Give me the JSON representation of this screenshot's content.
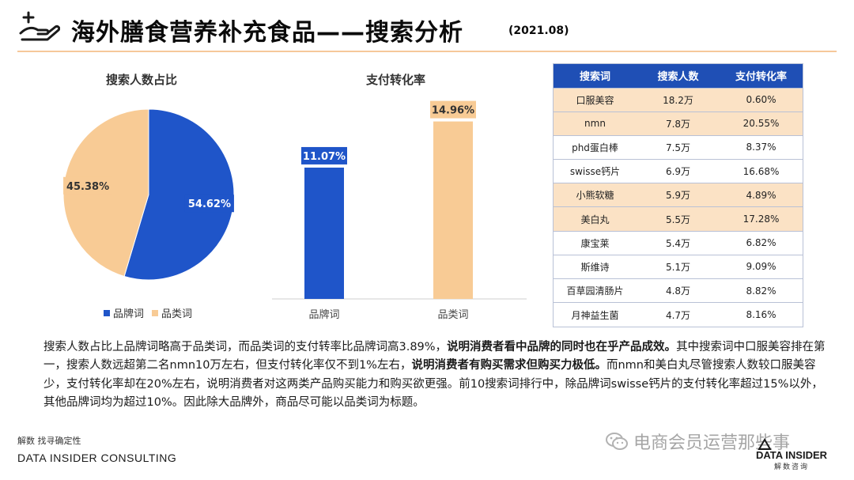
{
  "header": {
    "title": "海外膳食营养补充食品——搜索分析",
    "date": "(2021.08)",
    "logo_icon": "hand-plus-icon"
  },
  "chart_data": [
    {
      "type": "pie",
      "title": "搜索人数占比",
      "slices": [
        {
          "name": "品牌词",
          "value": 54.62,
          "label": "54.62%",
          "color": "#1f55c9"
        },
        {
          "name": "品类词",
          "value": 45.38,
          "label": "45.38%",
          "color": "#f8cb95"
        }
      ],
      "legend": "bottom"
    },
    {
      "type": "bar",
      "title": "支付转化率",
      "categories": [
        "品牌词",
        "品类词"
      ],
      "values": [
        11.07,
        14.96
      ],
      "labels": [
        "11.07%",
        "14.96%"
      ],
      "colors": [
        "#1f55c9",
        "#f8cb95"
      ],
      "ylim": [
        0,
        16
      ]
    }
  ],
  "table": {
    "headers": [
      "搜索词",
      "搜索人数",
      "支付转化率"
    ],
    "rows": [
      {
        "cells": [
          "口服美容",
          "18.2万",
          "0.60%"
        ],
        "highlight": true
      },
      {
        "cells": [
          "nmn",
          "7.8万",
          "20.55%"
        ],
        "highlight": true
      },
      {
        "cells": [
          "phd蛋白棒",
          "7.5万",
          "8.37%"
        ],
        "highlight": false
      },
      {
        "cells": [
          "swisse钙片",
          "6.9万",
          "16.68%"
        ],
        "highlight": false
      },
      {
        "cells": [
          "小熊软糖",
          "5.9万",
          "4.89%"
        ],
        "highlight": true
      },
      {
        "cells": [
          "美白丸",
          "5.5万",
          "17.28%"
        ],
        "highlight": true
      },
      {
        "cells": [
          "康宝莱",
          "5.4万",
          "6.82%"
        ],
        "highlight": false
      },
      {
        "cells": [
          "斯维诗",
          "5.1万",
          "9.09%"
        ],
        "highlight": false
      },
      {
        "cells": [
          "百草园清肠片",
          "4.8万",
          "8.82%"
        ],
        "highlight": false
      },
      {
        "cells": [
          "月神益生菌",
          "4.7万",
          "8.16%"
        ],
        "highlight": false
      }
    ]
  },
  "paragraph": {
    "p1": "搜索人数占比上品牌词略高于品类词，而品类词的支付转率比品牌词高3.89%，",
    "b1": "说明消费者看中品牌的同时也在乎产品成效。",
    "p2": "其中搜索词中口服美容排在第一，搜索人数远超第二名nmn10万左右，但支付转化率仅不到1%左右，",
    "b2": "说明消费者有购买需求但购买力极低。",
    "p3": "而nmn和美白丸尽管搜索人数较口服美容少，支付转化率却在20%左右，说明消费者对这两类产品购买能力和购买欲更强。前10搜索词排行中，除品牌词swisse钙片的支付转化率超过15%以外，其他品牌词均为超过10%。因此除大品牌外，商品尽可能以品类词为标题。"
  },
  "footer": {
    "tagline": "解数 找寻确定性",
    "company": "DATA INSIDER CONSULTING",
    "watermark": "电商会员运营那些事",
    "logo_main": "DATA INSIDER",
    "logo_sub": "解数咨询"
  }
}
